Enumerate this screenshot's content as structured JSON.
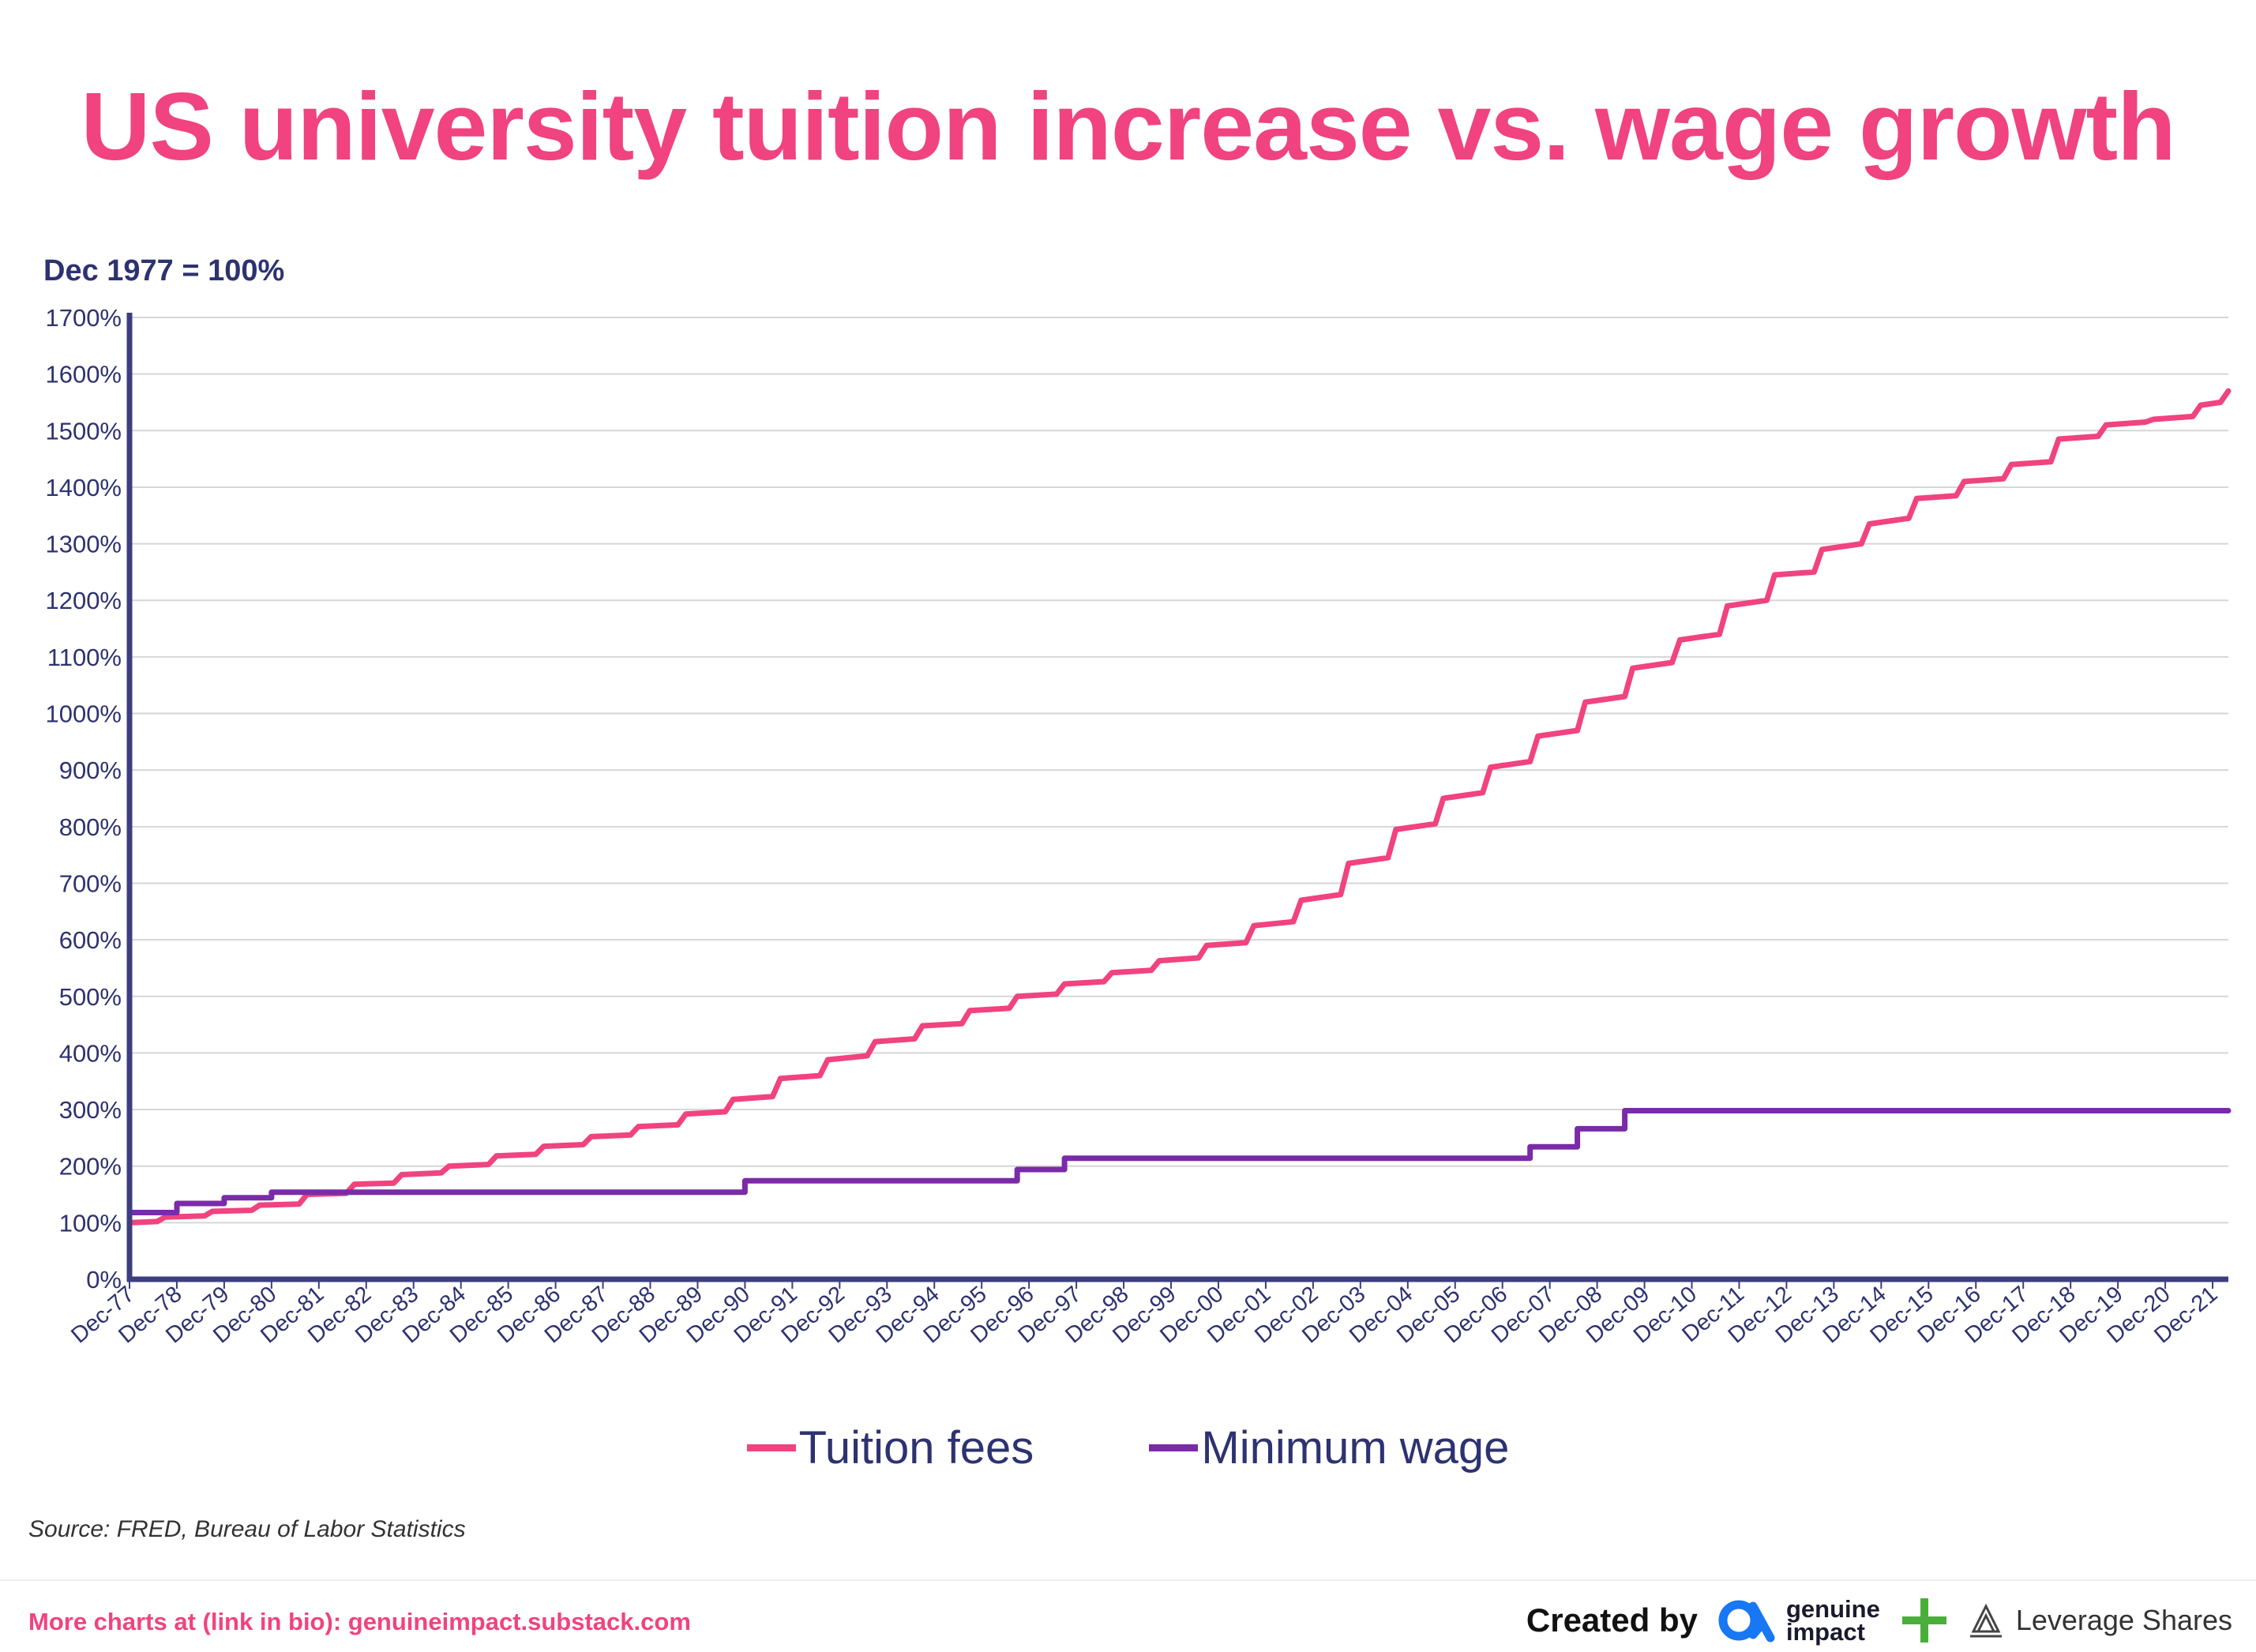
{
  "colors": {
    "title": "#f0437f",
    "axis": "#3c3f7e",
    "grid": "#d6d6d6",
    "text": "#2d3270",
    "tuition": "#f0437f",
    "wage": "#7a2ba8",
    "footer_link": "#f0437f",
    "gi_blue": "#1877f2",
    "plus": "#4aae3b"
  },
  "chart_data": {
    "type": "line",
    "title": "US university tuition increase vs. wage growth",
    "subtitle": "Dec 1977 = 100%",
    "ylim": [
      0,
      1700
    ],
    "yticks": [
      0,
      100,
      200,
      300,
      400,
      500,
      600,
      700,
      800,
      900,
      1000,
      1100,
      1200,
      1300,
      1400,
      1500,
      1600,
      1700
    ],
    "ytick_labels": [
      "0%",
      "100%",
      "200%",
      "300%",
      "400%",
      "500%",
      "600%",
      "700%",
      "800%",
      "900%",
      "1000%",
      "1100%",
      "1200%",
      "1300%",
      "1400%",
      "1500%",
      "1600%",
      "1700%"
    ],
    "xlim": [
      1977.917,
      2022.25
    ],
    "x_tick_labels": [
      "Dec-77",
      "Dec-78",
      "Dec-79",
      "Dec-80",
      "Dec-81",
      "Dec-82",
      "Dec-83",
      "Dec-84",
      "Dec-85",
      "Dec-86",
      "Dec-87",
      "Dec-88",
      "Dec-89",
      "Dec-90",
      "Dec-91",
      "Dec-92",
      "Dec-93",
      "Dec-94",
      "Dec-95",
      "Dec-96",
      "Dec-97",
      "Dec-98",
      "Dec-99",
      "Dec-00",
      "Dec-01",
      "Dec-02",
      "Dec-03",
      "Dec-04",
      "Dec-05",
      "Dec-06",
      "Dec-07",
      "Dec-08",
      "Dec-09",
      "Dec-10",
      "Dec-11",
      "Dec-12",
      "Dec-13",
      "Dec-14",
      "Dec-15",
      "Dec-16",
      "Dec-17",
      "Dec-18",
      "Dec-19",
      "Dec-20",
      "Dec-21"
    ],
    "x_tick_values": [
      1977.917,
      1978.917,
      1979.917,
      1980.917,
      1981.917,
      1982.917,
      1983.917,
      1984.917,
      1985.917,
      1986.917,
      1987.917,
      1988.917,
      1989.917,
      1990.917,
      1991.917,
      1992.917,
      1993.917,
      1994.917,
      1995.917,
      1996.917,
      1997.917,
      1998.917,
      1999.917,
      2000.917,
      2001.917,
      2002.917,
      2003.917,
      2004.917,
      2005.917,
      2006.917,
      2007.917,
      2008.917,
      2009.917,
      2010.917,
      2011.917,
      2012.917,
      2013.917,
      2014.917,
      2015.917,
      2016.917,
      2017.917,
      2018.917,
      2019.917,
      2020.917,
      2021.917
    ],
    "grid": true,
    "legend_position": "bottom",
    "series": [
      {
        "name": "Tuition fees",
        "color": "#f0437f",
        "x": [
          1977.917,
          1978.5,
          1978.667,
          1979.5,
          1979.667,
          1980.5,
          1980.667,
          1981.5,
          1981.667,
          1982.5,
          1982.667,
          1983.5,
          1983.667,
          1984.5,
          1984.667,
          1985.5,
          1985.667,
          1986.5,
          1986.667,
          1987.5,
          1987.667,
          1988.5,
          1988.667,
          1989.5,
          1989.667,
          1990.5,
          1990.667,
          1991.5,
          1991.667,
          1992.5,
          1992.667,
          1993.5,
          1993.667,
          1994.5,
          1994.667,
          1995.5,
          1995.667,
          1996.5,
          1996.667,
          1997.5,
          1997.667,
          1998.5,
          1998.667,
          1999.5,
          1999.667,
          2000.5,
          2000.667,
          2001.5,
          2001.667,
          2002.5,
          2002.667,
          2003.5,
          2003.667,
          2004.5,
          2004.667,
          2005.5,
          2005.667,
          2006.5,
          2006.667,
          2007.5,
          2007.667,
          2008.5,
          2008.667,
          2009.5,
          2009.667,
          2010.5,
          2010.667,
          2011.5,
          2011.667,
          2012.5,
          2012.667,
          2013.5,
          2013.667,
          2014.5,
          2014.667,
          2015.5,
          2015.667,
          2016.5,
          2016.667,
          2017.5,
          2017.667,
          2018.5,
          2018.667,
          2019.5,
          2019.667,
          2020.5,
          2020.667,
          2021.5,
          2021.667,
          2022.083,
          2022.25
        ],
        "values": [
          100,
          102,
          110,
          112,
          120,
          122,
          131,
          133,
          150,
          152,
          168,
          170,
          185,
          188,
          200,
          203,
          218,
          221,
          235,
          238,
          252,
          255,
          270,
          273,
          292,
          296,
          318,
          323,
          355,
          360,
          388,
          395,
          420,
          425,
          448,
          452,
          475,
          479,
          500,
          504,
          522,
          526,
          542,
          546,
          563,
          568,
          590,
          595,
          625,
          632,
          670,
          680,
          735,
          745,
          795,
          805,
          850,
          860,
          905,
          915,
          960,
          970,
          1020,
          1030,
          1080,
          1090,
          1130,
          1140,
          1190,
          1200,
          1245,
          1250,
          1290,
          1300,
          1335,
          1345,
          1380,
          1385,
          1410,
          1415,
          1440,
          1445,
          1485,
          1490,
          1510,
          1515,
          1520,
          1525,
          1545,
          1550,
          1570
        ]
      },
      {
        "name": "Minimum wage",
        "color": "#7a2ba8",
        "x": [
          1977.917,
          1978.917,
          1979.917,
          1980.917,
          1989.917,
          1990.917,
          1996.667,
          1997.667,
          2007.5,
          2008.5,
          2009.5,
          2022.25
        ],
        "values": [
          118,
          134,
          144,
          154,
          154,
          174,
          194,
          214,
          234,
          266,
          298,
          330
        ]
      }
    ]
  },
  "legend": {
    "items": [
      "Tuition fees",
      "Minimum wage"
    ]
  },
  "source": "Source: FRED, Bureau of Labor Statistics",
  "footer": {
    "link_text": "More charts at (link in bio): genuineimpact.substack.com",
    "created_by": "Created by",
    "gi_line1": "genuine",
    "gi_line2": "impact",
    "ls_name": "Leverage Shares",
    "gi_icon": "genuine-impact-logo-icon",
    "plus_icon": "plus-icon",
    "ls_icon": "leverage-shares-logo-icon"
  }
}
